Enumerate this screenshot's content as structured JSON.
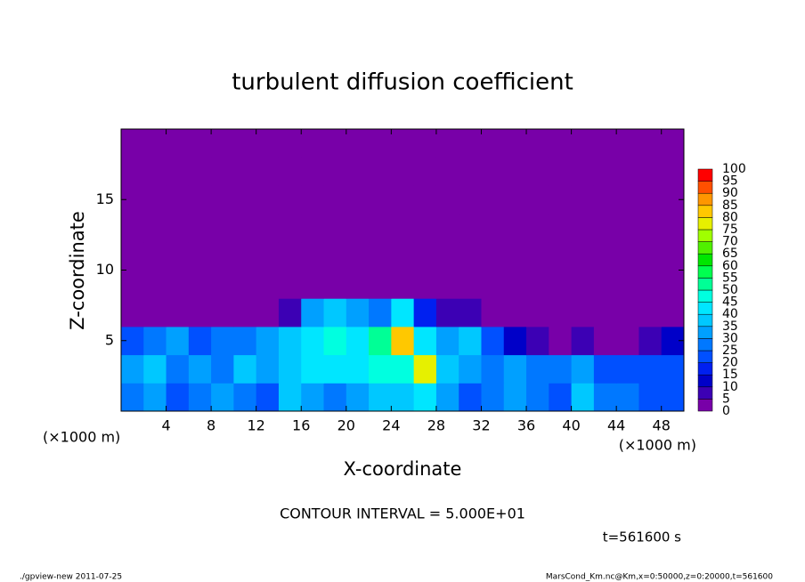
{
  "chart_data": {
    "type": "heatmap",
    "title": "turbulent diffusion coefficient",
    "x_label": "X-coordinate",
    "y_label": "Z-coordinate",
    "x_unit": "(×1000 m)",
    "y_unit": "(×1000 m)",
    "x_bins": [
      0,
      2,
      4,
      6,
      8,
      10,
      12,
      14,
      16,
      18,
      20,
      22,
      24,
      26,
      28,
      30,
      32,
      34,
      36,
      38,
      40,
      42,
      44,
      46,
      48,
      50
    ],
    "y_bins": [
      0,
      2,
      4,
      6,
      8,
      10,
      12,
      14,
      16,
      18,
      20
    ],
    "values": [
      [
        25,
        30,
        20,
        25,
        30,
        25,
        20,
        35,
        30,
        25,
        30,
        35,
        35,
        40,
        30,
        20,
        25,
        30,
        25,
        20,
        35,
        25,
        25,
        20,
        20
      ],
      [
        30,
        35,
        25,
        30,
        25,
        35,
        30,
        35,
        40,
        40,
        40,
        45,
        45,
        75,
        35,
        30,
        25,
        30,
        25,
        25,
        30,
        20,
        20,
        20,
        20
      ],
      [
        20,
        25,
        30,
        20,
        25,
        25,
        30,
        35,
        40,
        45,
        40,
        50,
        80,
        40,
        30,
        35,
        20,
        10,
        5,
        0,
        5,
        0,
        0,
        5,
        10
      ],
      [
        0,
        0,
        0,
        0,
        0,
        0,
        0,
        5,
        30,
        35,
        30,
        25,
        40,
        15,
        5,
        5,
        0,
        0,
        0,
        0,
        0,
        0,
        0,
        0,
        0
      ],
      [
        0,
        0,
        0,
        0,
        0,
        0,
        0,
        0,
        0,
        0,
        0,
        0,
        0,
        0,
        0,
        0,
        0,
        0,
        0,
        0,
        0,
        0,
        0,
        0,
        0
      ],
      [
        0,
        0,
        0,
        0,
        0,
        0,
        0,
        0,
        0,
        0,
        0,
        0,
        0,
        0,
        0,
        0,
        0,
        0,
        0,
        0,
        0,
        0,
        0,
        0,
        0
      ],
      [
        0,
        0,
        0,
        0,
        0,
        0,
        0,
        0,
        0,
        0,
        0,
        0,
        0,
        0,
        0,
        0,
        0,
        0,
        0,
        0,
        0,
        0,
        0,
        0,
        0
      ],
      [
        0,
        0,
        0,
        0,
        0,
        0,
        0,
        0,
        0,
        0,
        0,
        0,
        0,
        0,
        0,
        0,
        0,
        0,
        0,
        0,
        0,
        0,
        0,
        0,
        0
      ],
      [
        0,
        0,
        0,
        0,
        0,
        0,
        0,
        0,
        0,
        0,
        0,
        0,
        0,
        0,
        0,
        0,
        0,
        0,
        0,
        0,
        0,
        0,
        0,
        0,
        0
      ],
      [
        0,
        0,
        0,
        0,
        0,
        0,
        0,
        0,
        0,
        0,
        0,
        0,
        0,
        0,
        0,
        0,
        0,
        0,
        0,
        0,
        0,
        0,
        0,
        0,
        0
      ]
    ],
    "xlim": [
      0,
      50
    ],
    "ylim": [
      0,
      20
    ],
    "xticks": [
      4,
      8,
      12,
      16,
      20,
      24,
      28,
      32,
      36,
      40,
      44,
      48
    ],
    "yticks": [
      5,
      10,
      15
    ],
    "levels": [
      0,
      5,
      10,
      15,
      20,
      25,
      30,
      35,
      40,
      45,
      50,
      55,
      60,
      65,
      70,
      75,
      80,
      85,
      90,
      95,
      100
    ],
    "colors": [
      "#7800a8",
      "#3c00b4",
      "#0000c8",
      "#0020f0",
      "#0050ff",
      "#0078ff",
      "#00a0ff",
      "#00c8ff",
      "#00e6ff",
      "#00ffe0",
      "#00ff96",
      "#00ff50",
      "#00e600",
      "#50f000",
      "#a0ff00",
      "#e6f000",
      "#ffc800",
      "#ff9600",
      "#ff5000",
      "#ff0000"
    ],
    "contour_interval": "CONTOUR INTERVAL = 5.000E+01",
    "time_label": "t=561600 s",
    "footer_left": "./gpview-new   2011-07-25",
    "footer_right": "MarsCond_Km.nc@Km,x=0:50000,z=0:20000,t=561600"
  }
}
